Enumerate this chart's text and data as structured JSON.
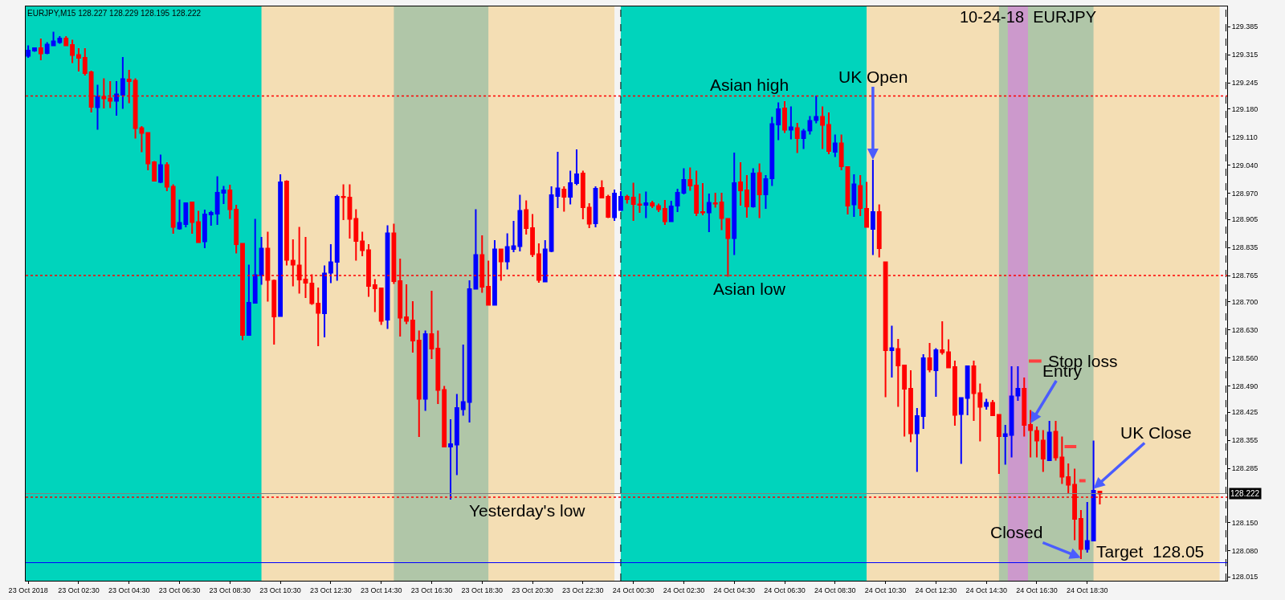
{
  "chart_data": {
    "type": "candlestick",
    "title": "10-24-18  EURJPY",
    "annotations": [
      "EURJPY,M15 128.227 128.229 128.195 128.222",
      {
        "text": "Asian high",
        "x": "2018-10-24T05:06",
        "y": 129.212
      },
      {
        "text": "Asian low",
        "x": "2018-10-24T05:06",
        "y": 128.765
      },
      {
        "text": "Yesterday's low",
        "x": "2018-10-23T20:18",
        "y": 128.213
      },
      {
        "text": "UK Open",
        "x": "2018-10-24T10:00",
        "y": 129.053
      },
      {
        "text": "Stop loss",
        "x": "2018-10-24T16:41",
        "y": 128.552
      },
      {
        "text": "Entry",
        "x": "2018-10-24T16:15",
        "y": 128.397
      },
      {
        "text": "UK Close",
        "x": "2018-10-24T18:45",
        "y": 128.234
      },
      {
        "text": "Closed",
        "x": "2018-10-24T18:15",
        "y": 128.062
      },
      {
        "text": "Target  128.05",
        "x": "2018-10-24T21:00",
        "y": 128.05
      }
    ],
    "series": [
      {
        "x": [
          "2018-10-23T00:30",
          "2018-10-23T00:45",
          "2018-10-23T01:00",
          "2018-10-23T01:15",
          "2018-10-23T01:30",
          "2018-10-23T01:45",
          "2018-10-23T02:00",
          "2018-10-23T02:15",
          "2018-10-23T02:30",
          "2018-10-23T02:45",
          "2018-10-23T03:00",
          "2018-10-23T03:15",
          "2018-10-23T03:30",
          "2018-10-23T03:45",
          "2018-10-23T04:00",
          "2018-10-23T04:15",
          "2018-10-23T04:30",
          "2018-10-23T04:45",
          "2018-10-23T05:00",
          "2018-10-23T05:15",
          "2018-10-23T05:30",
          "2018-10-23T05:45",
          "2018-10-23T06:00",
          "2018-10-23T06:15",
          "2018-10-23T06:30",
          "2018-10-23T06:45",
          "2018-10-23T07:00",
          "2018-10-23T07:15",
          "2018-10-23T07:30",
          "2018-10-23T07:45",
          "2018-10-23T08:00",
          "2018-10-23T08:15",
          "2018-10-23T08:30",
          "2018-10-23T08:45",
          "2018-10-23T09:00",
          "2018-10-23T09:15",
          "2018-10-23T09:30",
          "2018-10-23T09:45",
          "2018-10-23T10:00",
          "2018-10-23T10:15",
          "2018-10-23T10:30",
          "2018-10-23T10:45",
          "2018-10-23T11:00",
          "2018-10-23T11:15",
          "2018-10-23T11:30",
          "2018-10-23T11:45",
          "2018-10-23T12:00",
          "2018-10-23T12:15",
          "2018-10-23T12:30",
          "2018-10-23T12:45",
          "2018-10-23T13:00",
          "2018-10-23T13:15",
          "2018-10-23T13:30",
          "2018-10-23T13:45",
          "2018-10-23T14:00",
          "2018-10-23T14:15",
          "2018-10-23T14:30",
          "2018-10-23T14:45",
          "2018-10-23T15:00",
          "2018-10-23T15:15",
          "2018-10-23T15:30",
          "2018-10-23T15:45",
          "2018-10-23T16:00",
          "2018-10-23T16:15",
          "2018-10-23T16:30",
          "2018-10-23T16:45",
          "2018-10-23T17:00",
          "2018-10-23T17:15",
          "2018-10-23T17:30",
          "2018-10-23T17:45",
          "2018-10-23T18:00",
          "2018-10-23T18:15",
          "2018-10-23T18:30",
          "2018-10-23T18:45",
          "2018-10-23T19:00",
          "2018-10-23T19:15",
          "2018-10-23T19:30",
          "2018-10-23T19:45",
          "2018-10-23T20:00",
          "2018-10-23T20:15",
          "2018-10-23T20:30",
          "2018-10-23T20:45",
          "2018-10-23T21:00",
          "2018-10-23T21:15",
          "2018-10-23T21:30",
          "2018-10-23T21:45",
          "2018-10-23T22:00",
          "2018-10-23T22:15",
          "2018-10-23T22:30",
          "2018-10-23T22:45",
          "2018-10-23T23:00",
          "2018-10-23T23:15",
          "2018-10-23T23:30",
          "2018-10-23T23:45",
          "2018-10-24T00:00",
          "2018-10-24T00:15",
          "2018-10-24T00:30",
          "2018-10-24T00:45",
          "2018-10-24T01:00",
          "2018-10-24T01:15",
          "2018-10-24T01:30",
          "2018-10-24T01:45",
          "2018-10-24T02:00",
          "2018-10-24T02:15",
          "2018-10-24T02:30",
          "2018-10-24T02:45",
          "2018-10-24T03:00",
          "2018-10-24T03:15",
          "2018-10-24T03:30",
          "2018-10-24T03:45",
          "2018-10-24T04:00",
          "2018-10-24T04:15",
          "2018-10-24T04:30",
          "2018-10-24T04:45",
          "2018-10-24T05:00",
          "2018-10-24T05:15",
          "2018-10-24T05:30",
          "2018-10-24T05:45",
          "2018-10-24T06:00",
          "2018-10-24T06:15",
          "2018-10-24T06:30",
          "2018-10-24T06:45",
          "2018-10-24T07:00",
          "2018-10-24T07:15",
          "2018-10-24T07:30",
          "2018-10-24T07:45",
          "2018-10-24T08:00",
          "2018-10-24T08:15",
          "2018-10-24T08:30",
          "2018-10-24T08:45",
          "2018-10-24T09:00",
          "2018-10-24T09:15",
          "2018-10-24T09:30",
          "2018-10-24T09:45",
          "2018-10-24T10:00",
          "2018-10-24T10:15",
          "2018-10-24T10:30",
          "2018-10-24T10:45",
          "2018-10-24T11:00",
          "2018-10-24T11:15",
          "2018-10-24T11:30",
          "2018-10-24T11:45",
          "2018-10-24T12:00",
          "2018-10-24T12:15",
          "2018-10-24T12:30",
          "2018-10-24T12:45",
          "2018-10-24T13:00",
          "2018-10-24T13:15",
          "2018-10-24T13:30",
          "2018-10-24T13:45",
          "2018-10-24T14:00",
          "2018-10-24T14:15",
          "2018-10-24T14:30",
          "2018-10-24T14:45",
          "2018-10-24T15:00",
          "2018-10-24T15:15",
          "2018-10-24T15:30",
          "2018-10-24T15:45",
          "2018-10-24T16:00",
          "2018-10-24T16:15",
          "2018-10-24T16:30",
          "2018-10-24T16:45",
          "2018-10-24T17:00",
          "2018-10-24T17:15",
          "2018-10-24T17:30",
          "2018-10-24T17:45",
          "2018-10-24T18:00",
          "2018-10-24T18:15",
          "2018-10-24T18:30",
          "2018-10-24T18:45",
          "2018-10-24T19:00"
        ],
        "ohlc": [
          [
            129.312,
            129.338,
            129.307,
            129.325
          ],
          [
            129.325,
            129.333,
            129.322,
            129.331
          ],
          [
            129.331,
            129.355,
            129.301,
            129.318
          ],
          [
            129.319,
            129.346,
            129.316,
            129.34
          ],
          [
            129.338,
            129.372,
            129.336,
            129.348
          ],
          [
            129.346,
            129.361,
            129.342,
            129.355
          ],
          [
            129.355,
            129.361,
            129.336,
            129.338
          ],
          [
            129.339,
            129.352,
            129.294,
            129.314
          ],
          [
            129.314,
            129.331,
            129.273,
            129.307
          ],
          [
            129.307,
            129.331,
            129.263,
            129.269
          ],
          [
            129.271,
            129.275,
            129.171,
            129.185
          ],
          [
            129.184,
            129.24,
            129.128,
            129.21
          ],
          [
            129.21,
            129.256,
            129.181,
            129.206
          ],
          [
            129.206,
            129.249,
            129.182,
            129.2
          ],
          [
            129.2,
            129.249,
            129.163,
            129.216
          ],
          [
            129.215,
            129.309,
            129.18,
            129.254
          ],
          [
            129.253,
            129.277,
            129.194,
            129.249
          ],
          [
            129.25,
            129.256,
            129.106,
            129.132
          ],
          [
            129.132,
            129.137,
            129.072,
            129.12
          ],
          [
            129.12,
            129.12,
            129.027,
            129.044
          ],
          [
            129.047,
            129.05,
            128.999,
            129.001
          ],
          [
            128.998,
            129.066,
            128.995,
            129.04
          ],
          [
            129.04,
            129.047,
            128.975,
            128.986
          ],
          [
            128.986,
            128.992,
            128.869,
            128.886
          ],
          [
            128.882,
            128.954,
            128.879,
            128.896
          ],
          [
            128.893,
            128.945,
            128.885,
            128.945
          ],
          [
            128.947,
            128.947,
            128.869,
            128.898
          ],
          [
            128.898,
            128.926,
            128.846,
            128.848
          ],
          [
            128.85,
            128.929,
            128.833,
            128.917
          ],
          [
            128.917,
            128.926,
            128.889,
            128.921
          ],
          [
            128.919,
            129.012,
            128.891,
            128.971
          ],
          [
            128.971,
            128.988,
            128.943,
            128.977
          ],
          [
            128.977,
            128.991,
            128.906,
            128.93
          ],
          [
            128.929,
            128.941,
            128.82,
            128.843
          ],
          [
            128.844,
            128.844,
            128.604,
            128.617
          ],
          [
            128.617,
            128.792,
            128.615,
            128.697
          ],
          [
            128.697,
            128.906,
            128.696,
            128.766
          ],
          [
            128.766,
            128.861,
            128.742,
            128.832
          ],
          [
            128.832,
            128.874,
            128.7,
            128.754
          ],
          [
            128.752,
            128.755,
            128.593,
            128.663
          ],
          [
            128.664,
            129.017,
            128.662,
            128.997
          ],
          [
            128.999,
            129.002,
            128.79,
            128.804
          ],
          [
            128.802,
            128.855,
            128.738,
            128.792
          ],
          [
            128.79,
            128.886,
            128.72,
            128.755
          ],
          [
            128.755,
            128.861,
            128.709,
            128.747
          ],
          [
            128.745,
            128.768,
            128.692,
            128.696
          ],
          [
            128.695,
            128.735,
            128.589,
            128.672
          ],
          [
            128.671,
            128.79,
            128.611,
            128.77
          ],
          [
            128.772,
            128.843,
            128.746,
            128.798
          ],
          [
            128.799,
            128.966,
            128.752,
            128.961
          ],
          [
            128.961,
            128.992,
            128.903,
            128.96
          ],
          [
            128.959,
            128.992,
            128.857,
            128.906
          ],
          [
            128.906,
            128.93,
            128.802,
            128.851
          ],
          [
            128.85,
            128.874,
            128.813,
            128.828
          ],
          [
            128.828,
            128.843,
            128.712,
            128.739
          ],
          [
            128.741,
            128.756,
            128.674,
            128.733
          ],
          [
            128.733,
            128.733,
            128.642,
            128.652
          ],
          [
            128.655,
            128.89,
            128.632,
            128.87
          ],
          [
            128.87,
            128.894,
            128.744,
            128.751
          ],
          [
            128.751,
            128.807,
            128.613,
            128.66
          ],
          [
            128.661,
            128.743,
            128.644,
            128.652
          ],
          [
            128.653,
            128.701,
            128.573,
            128.603
          ],
          [
            128.603,
            128.628,
            128.363,
            128.458
          ],
          [
            128.458,
            128.628,
            128.428,
            128.619
          ],
          [
            128.619,
            128.727,
            128.557,
            128.583
          ],
          [
            128.583,
            128.628,
            128.445,
            128.48
          ],
          [
            128.48,
            128.49,
            128.339,
            128.339
          ],
          [
            128.339,
            128.407,
            128.207,
            128.345
          ],
          [
            128.344,
            128.47,
            128.268,
            128.435
          ],
          [
            128.432,
            128.593,
            128.416,
            128.45
          ],
          [
            128.45,
            128.753,
            128.399,
            128.731
          ],
          [
            128.732,
            128.93,
            128.73,
            128.816
          ],
          [
            128.816,
            128.865,
            128.722,
            128.737
          ],
          [
            128.737,
            128.802,
            128.69,
            128.692
          ],
          [
            128.692,
            128.853,
            128.692,
            128.83
          ],
          [
            128.83,
            128.83,
            128.752,
            128.8
          ],
          [
            128.8,
            128.87,
            128.78,
            128.836
          ],
          [
            128.831,
            128.901,
            128.823,
            128.838
          ],
          [
            128.838,
            128.966,
            128.825,
            128.926
          ],
          [
            128.928,
            128.952,
            128.867,
            128.883
          ],
          [
            128.883,
            128.918,
            128.811,
            128.818
          ],
          [
            128.818,
            128.845,
            128.747,
            128.754
          ],
          [
            128.75,
            128.853,
            128.749,
            128.83
          ],
          [
            128.826,
            128.987,
            128.823,
            128.965
          ],
          [
            128.963,
            129.073,
            128.933,
            128.982
          ],
          [
            128.979,
            128.987,
            128.924,
            128.961
          ],
          [
            128.961,
            129.026,
            128.942,
            128.995
          ],
          [
            128.995,
            129.079,
            128.99,
            129.017
          ],
          [
            129.019,
            129.026,
            128.905,
            128.935
          ],
          [
            128.934,
            128.945,
            128.883,
            128.894
          ],
          [
            128.895,
            128.987,
            128.885,
            128.981
          ],
          [
            128.983,
            129.002,
            128.959,
            128.959
          ],
          [
            128.961,
            128.966,
            128.908,
            128.911
          ],
          [
            128.91,
            128.979,
            128.901,
            128.969
          ],
          [
            128.928,
            128.975,
            128.926,
            128.961
          ],
          [
            128.961,
            128.966,
            128.944,
            128.955
          ],
          [
            128.959,
            128.996,
            128.901,
            128.943
          ],
          [
            128.942,
            128.969,
            128.921,
            128.941
          ],
          [
            128.941,
            128.974,
            128.908,
            128.945
          ],
          [
            128.945,
            128.951,
            128.933,
            128.939
          ],
          [
            128.938,
            128.944,
            128.923,
            128.93
          ],
          [
            128.931,
            128.953,
            128.891,
            128.9
          ],
          [
            128.9,
            128.951,
            128.9,
            128.937
          ],
          [
            128.939,
            128.981,
            128.923,
            128.971
          ],
          [
            128.971,
            129.032,
            128.967,
            129.003
          ],
          [
            129.003,
            129.034,
            128.976,
            128.989
          ],
          [
            128.989,
            129.026,
            128.913,
            128.921
          ],
          [
            128.923,
            128.995,
            128.915,
            128.922
          ],
          [
            128.922,
            128.969,
            128.873,
            128.946
          ],
          [
            128.945,
            128.971,
            128.934,
            128.944
          ],
          [
            128.947,
            128.971,
            128.878,
            128.908
          ],
          [
            128.906,
            128.906,
            128.762,
            128.858
          ],
          [
            128.858,
            129.071,
            128.816,
            128.995
          ],
          [
            128.997,
            129.047,
            128.939,
            128.977
          ],
          [
            128.977,
            129.015,
            128.909,
            128.937
          ],
          [
            128.937,
            129.032,
            128.934,
            129.019
          ],
          [
            129.02,
            129.044,
            128.908,
            128.967
          ],
          [
            128.967,
            129.015,
            128.931,
            129.005
          ],
          [
            129.007,
            129.16,
            128.988,
            129.142
          ],
          [
            129.141,
            129.196,
            129.102,
            129.179
          ],
          [
            129.181,
            129.199,
            129.12,
            129.128
          ],
          [
            129.128,
            129.186,
            129.104,
            129.134
          ],
          [
            129.132,
            129.145,
            129.07,
            129.107
          ],
          [
            129.107,
            129.13,
            129.08,
            129.124
          ],
          [
            129.126,
            129.162,
            129.116,
            129.15
          ],
          [
            129.152,
            129.213,
            129.144,
            129.16
          ],
          [
            129.16,
            129.186,
            129.08,
            129.14
          ],
          [
            129.14,
            129.171,
            129.067,
            129.075
          ],
          [
            129.073,
            129.116,
            129.06,
            129.094
          ],
          [
            129.094,
            129.116,
            129.027,
            129.037
          ],
          [
            129.035,
            129.035,
            128.917,
            128.939
          ],
          [
            128.942,
            129.017,
            128.911,
            128.992
          ],
          [
            128.988,
            129.015,
            128.913,
            128.933
          ],
          [
            128.931,
            128.998,
            128.886,
            128.886
          ],
          [
            128.881,
            129.053,
            128.816,
            128.923
          ],
          [
            128.923,
            128.942,
            128.81,
            128.833
          ],
          [
            128.798,
            128.798,
            128.462,
            128.579
          ],
          [
            128.579,
            128.64,
            128.511,
            128.584
          ],
          [
            128.582,
            128.607,
            128.438,
            128.541
          ],
          [
            128.541,
            128.541,
            128.364,
            128.483
          ],
          [
            128.483,
            128.529,
            128.35,
            128.372
          ],
          [
            128.372,
            128.435,
            128.276,
            128.415
          ],
          [
            128.415,
            128.569,
            128.383,
            128.559
          ],
          [
            128.559,
            128.597,
            128.524,
            128.531
          ],
          [
            128.529,
            128.584,
            128.463,
            128.579
          ],
          [
            128.579,
            128.651,
            128.568,
            128.574
          ],
          [
            128.574,
            128.606,
            128.536,
            128.536
          ],
          [
            128.537,
            128.553,
            128.391,
            128.418
          ],
          [
            128.42,
            128.46,
            128.296,
            128.46
          ],
          [
            128.46,
            128.541,
            128.417,
            128.539
          ],
          [
            128.539,
            128.553,
            128.403,
            128.472
          ],
          [
            128.472,
            128.496,
            128.352,
            128.438
          ],
          [
            128.44,
            128.458,
            128.431,
            128.448
          ],
          [
            128.448,
            128.455,
            128.417,
            128.417
          ],
          [
            128.418,
            128.418,
            128.271,
            128.365
          ],
          [
            128.365,
            128.393,
            128.294,
            128.37
          ],
          [
            128.368,
            128.539,
            128.312,
            128.464
          ],
          [
            128.466,
            128.539,
            128.453,
            128.483
          ],
          [
            128.483,
            128.511,
            128.364,
            128.393
          ],
          [
            128.393,
            128.43,
            128.312,
            128.38
          ],
          [
            128.378,
            128.389,
            128.312,
            128.354
          ],
          [
            128.354,
            128.38,
            128.276,
            128.309
          ],
          [
            128.305,
            128.403,
            128.304,
            128.374
          ],
          [
            128.376,
            128.403,
            128.304,
            128.312
          ],
          [
            128.312,
            128.364,
            128.246,
            128.264
          ],
          [
            128.263,
            128.297,
            128.223,
            128.244
          ],
          [
            128.244,
            128.284,
            128.106,
            128.159
          ],
          [
            128.159,
            128.181,
            128.059,
            128.084
          ],
          [
            128.084,
            128.201,
            128.075,
            128.104
          ],
          [
            128.105,
            128.354,
            128.105,
            128.229
          ],
          [
            128.227,
            128.229,
            128.195,
            128.222
          ]
        ],
        "colors": [
          "#0000ff",
          "#0000ff",
          "#ff0000",
          "#0000ff",
          "#0000ff",
          "#0000ff",
          "#ff0000",
          "#ff0000",
          "#ff0000",
          "#ff0000",
          "#ff0000",
          "#0000ff",
          "#ff0000",
          "#ff0000",
          "#0000ff",
          "#0000ff",
          "#ff0000",
          "#ff0000",
          "#ff0000",
          "#ff0000",
          "#ff0000",
          "#0000ff",
          "#ff0000",
          "#ff0000",
          "#0000ff",
          "#0000ff",
          "#ff0000",
          "#ff0000",
          "#0000ff",
          "#0000ff",
          "#0000ff",
          "#0000ff",
          "#ff0000",
          "#ff0000",
          "#ff0000",
          "#0000ff",
          "#0000ff",
          "#0000ff",
          "#ff0000",
          "#ff0000",
          "#0000ff",
          "#ff0000",
          "#ff0000",
          "#ff0000",
          "#ff0000",
          "#ff0000",
          "#ff0000",
          "#0000ff",
          "#0000ff",
          "#0000ff",
          "#ff0000",
          "#ff0000",
          "#ff0000",
          "#ff0000",
          "#ff0000",
          "#ff0000",
          "#ff0000",
          "#0000ff",
          "#ff0000",
          "#ff0000",
          "#ff0000",
          "#ff0000",
          "#ff0000",
          "#0000ff",
          "#ff0000",
          "#ff0000",
          "#ff0000",
          "#0000ff",
          "#0000ff",
          "#0000ff",
          "#0000ff",
          "#0000ff",
          "#ff0000",
          "#ff0000",
          "#0000ff",
          "#ff0000",
          "#0000ff",
          "#0000ff",
          "#0000ff",
          "#ff0000",
          "#ff0000",
          "#ff0000",
          "#0000ff",
          "#0000ff",
          "#0000ff",
          "#ff0000",
          "#0000ff",
          "#0000ff",
          "#ff0000",
          "#ff0000",
          "#0000ff",
          "#ff0000",
          "#ff0000",
          "#0000ff",
          "#0000ff",
          "#ff0000",
          "#ff0000",
          "#ff0000",
          "#0000ff",
          "#ff0000",
          "#ff0000",
          "#ff0000",
          "#0000ff",
          "#0000ff",
          "#0000ff",
          "#ff0000",
          "#ff0000",
          "#ff0000",
          "#0000ff",
          "#ff0000",
          "#ff0000",
          "#ff0000",
          "#0000ff",
          "#ff0000",
          "#ff0000",
          "#0000ff",
          "#ff0000",
          "#0000ff",
          "#0000ff",
          "#0000ff",
          "#ff0000",
          "#0000ff",
          "#ff0000",
          "#0000ff",
          "#0000ff",
          "#0000ff",
          "#ff0000",
          "#ff0000",
          "#0000ff",
          "#ff0000",
          "#ff0000",
          "#0000ff",
          "#ff0000",
          "#ff0000",
          "#0000ff",
          "#ff0000",
          "#ff0000",
          "#0000ff",
          "#ff0000",
          "#ff0000",
          "#ff0000",
          "#0000ff",
          "#0000ff",
          "#ff0000",
          "#0000ff",
          "#ff0000",
          "#ff0000",
          "#ff0000",
          "#0000ff",
          "#0000ff",
          "#ff0000",
          "#ff0000",
          "#0000ff",
          "#ff0000",
          "#ff0000",
          "#0000ff",
          "#0000ff",
          "#0000ff",
          "#ff0000",
          "#ff0000",
          "#ff0000",
          "#ff0000",
          "#0000ff",
          "#ff0000",
          "#ff0000",
          "#ff0000",
          "#ff0000",
          "#ff0000",
          "#0000ff",
          "#0000ff",
          "#ff0000"
        ]
      },
      {
        "type": "line",
        "color": "#ff4040",
        "x": [
          "2018-10-24T16:11",
          "2018-10-24T16:41"
        ],
        "values": [
          128.552,
          128.552
        ]
      },
      {
        "type": "line",
        "color": "#ff4040",
        "x": [
          "2018-10-24T17:36",
          "2018-10-24T18:04"
        ],
        "values": [
          128.339,
          128.339
        ]
      },
      {
        "type": "line",
        "color": "#ff4040",
        "x": [
          "2018-10-24T18:11",
          "2018-10-24T18:26"
        ],
        "values": [
          128.254,
          128.254
        ]
      }
    ],
    "xlim": [
      "2018-10-23T00:24",
      "2018-10-25T00:03"
    ],
    "ylim": [
      128.005,
      129.435
    ],
    "xticks": [
      {
        "value": "2018-10-23T00:30",
        "label": "23 Oct 2018"
      },
      {
        "value": "2018-10-23T02:30",
        "label": "23 Oct 02:30"
      },
      {
        "value": "2018-10-23T04:30",
        "label": "23 Oct 04:30"
      },
      {
        "value": "2018-10-23T06:30",
        "label": "23 Oct 06:30"
      },
      {
        "value": "2018-10-23T08:30",
        "label": "23 Oct 08:30"
      },
      {
        "value": "2018-10-23T10:30",
        "label": "23 Oct 10:30"
      },
      {
        "value": "2018-10-23T12:30",
        "label": "23 Oct 12:30"
      },
      {
        "value": "2018-10-23T14:30",
        "label": "23 Oct 14:30"
      },
      {
        "value": "2018-10-23T16:30",
        "label": "23 Oct 16:30"
      },
      {
        "value": "2018-10-23T18:30",
        "label": "23 Oct 18:30"
      },
      {
        "value": "2018-10-23T20:30",
        "label": "23 Oct 20:30"
      },
      {
        "value": "2018-10-23T22:30",
        "label": "23 Oct 22:30"
      },
      {
        "value": "2018-10-24T00:30",
        "label": "24 Oct 00:30"
      },
      {
        "value": "2018-10-24T02:30",
        "label": "24 Oct 02:30"
      },
      {
        "value": "2018-10-24T04:30",
        "label": "24 Oct 04:30"
      },
      {
        "value": "2018-10-24T06:30",
        "label": "24 Oct 06:30"
      },
      {
        "value": "2018-10-24T08:30",
        "label": "24 Oct 08:30"
      },
      {
        "value": "2018-10-24T10:30",
        "label": "24 Oct 10:30"
      },
      {
        "value": "2018-10-24T12:30",
        "label": "24 Oct 12:30"
      },
      {
        "value": "2018-10-24T14:30",
        "label": "24 Oct 14:30"
      },
      {
        "value": "2018-10-24T16:30",
        "label": "24 Oct 16:30"
      },
      {
        "value": "2018-10-24T18:30",
        "label": "24 Oct 18:30"
      }
    ],
    "yticks": [
      {
        "value": 129.385,
        "label": "129.385"
      },
      {
        "value": 129.315,
        "label": "129.315"
      },
      {
        "value": 129.245,
        "label": "129.245"
      },
      {
        "value": 129.18,
        "label": "129.180"
      },
      {
        "value": 129.11,
        "label": "129.110"
      },
      {
        "value": 129.04,
        "label": "129.040"
      },
      {
        "value": 128.97,
        "label": "128.970"
      },
      {
        "value": 128.905,
        "label": "128.905"
      },
      {
        "value": 128.835,
        "label": "128.835"
      },
      {
        "value": 128.765,
        "label": "128.765"
      },
      {
        "value": 128.7,
        "label": "128.700"
      },
      {
        "value": 128.63,
        "label": "128.630"
      },
      {
        "value": 128.56,
        "label": "128.560"
      },
      {
        "value": 128.49,
        "label": "128.490"
      },
      {
        "value": 128.425,
        "label": "128.425"
      },
      {
        "value": 128.355,
        "label": "128.355"
      },
      {
        "value": 128.285,
        "label": "128.285"
      },
      {
        "value": 128.15,
        "label": "128.150"
      },
      {
        "value": 128.08,
        "label": "128.080"
      },
      {
        "value": 128.015,
        "label": "128.015"
      }
    ],
    "grid": false,
    "bands": [
      {
        "axis": "x",
        "from": "2018-10-23T00:24",
        "to": "2018-10-23T23:45",
        "color": "#f4deb4"
      },
      {
        "axis": "x",
        "from": "2018-10-24T00:00",
        "to": "2018-10-24T23:45",
        "color": "#f4deb4"
      },
      {
        "axis": "x",
        "from": "2018-10-23T00:24",
        "to": "2018-10-23T09:45",
        "color": "#00d4bc"
      },
      {
        "axis": "x",
        "from": "2018-10-24T00:00",
        "to": "2018-10-24T09:45",
        "color": "#00d4bc"
      },
      {
        "axis": "x",
        "from": "2018-10-23T15:00",
        "to": "2018-10-23T18:45",
        "color": "#b0c6a8"
      },
      {
        "axis": "x",
        "from": "2018-10-24T15:00",
        "to": "2018-10-24T18:45",
        "color": "#b0c6a8"
      },
      {
        "axis": "x",
        "from": "2018-10-24T15:21",
        "to": "2018-10-24T16:09",
        "color": "#cc99cc"
      }
    ],
    "ref_lines": [
      {
        "axis": "x",
        "value": "2018-10-24T00:00",
        "line_style": "dashed",
        "color": "#000000"
      },
      {
        "axis": "x",
        "value": "2018-10-25T00:00",
        "line_style": "dashed",
        "color": "#000000"
      },
      {
        "axis": "y",
        "value": 129.212,
        "line_style": "dotted",
        "color": "#ff0000"
      },
      {
        "axis": "y",
        "value": 128.765,
        "line_style": "dotted",
        "color": "#ff0000"
      },
      {
        "axis": "y",
        "value": 128.213,
        "line_style": "dotted",
        "color": "#ff0000"
      },
      {
        "axis": "y",
        "value": 128.222,
        "line_style": "solid",
        "color": "#808080",
        "label": "128.222"
      },
      {
        "axis": "y",
        "value": 128.05,
        "line_style": "solid",
        "color": "#0000ff"
      }
    ]
  }
}
